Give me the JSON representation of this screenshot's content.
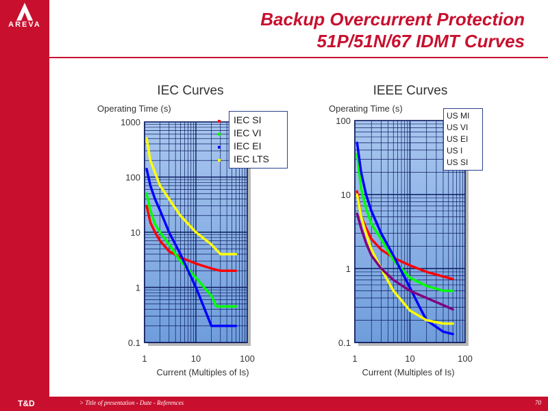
{
  "header": {
    "logo_text": "AREVA",
    "title_line1": "Backup Overcurrent Protection",
    "title_line2": "51P/51N/67 IDMT Curves"
  },
  "footer": {
    "division": "T&D",
    "text": "> Title of presentation - Date - References",
    "page": "70"
  },
  "colors": {
    "brand": "#c8102e",
    "plot_bg_top": "#a9c7ef",
    "plot_bg_bottom": "#6f9ddc",
    "grid": "#0b1a5c"
  },
  "chart_data": [
    {
      "type": "line",
      "title": "IEC Curves",
      "xlabel": "Current (Multiples of Is)",
      "ylabel": "Operating Time (s)",
      "xscale": "log",
      "yscale": "log",
      "xlim": [
        1,
        100
      ],
      "ylim": [
        0.1,
        1000
      ],
      "xticks": [
        "1",
        "10",
        "100"
      ],
      "yticks": [
        "0.1",
        "1",
        "10",
        "100",
        "1000"
      ],
      "grid": true,
      "legend_position": "top-right",
      "series": [
        {
          "name": "IEC SI",
          "color": "#ff0000",
          "x": [
            1.1,
            1.3,
            1.6,
            2,
            3,
            5,
            10,
            20,
            30,
            60
          ],
          "y": [
            30,
            15,
            10,
            7,
            4.5,
            3.5,
            2.7,
            2.2,
            2,
            2
          ]
        },
        {
          "name": "IEC VI",
          "color": "#00ff00",
          "x": [
            1.1,
            1.3,
            1.6,
            2,
            3,
            5,
            10,
            20,
            25,
            60
          ],
          "y": [
            50,
            25,
            14,
            10,
            6,
            3,
            1.5,
            0.7,
            0.45,
            0.45
          ]
        },
        {
          "name": "IEC EI",
          "color": "#0000ff",
          "x": [
            1.1,
            1.3,
            1.6,
            2,
            3,
            5,
            10,
            20,
            60
          ],
          "y": [
            140,
            70,
            40,
            25,
            10,
            4,
            1,
            0.2,
            0.2
          ]
        },
        {
          "name": "IEC LTS",
          "color": "#ffff00",
          "x": [
            1.1,
            1.3,
            1.6,
            2,
            3,
            5,
            10,
            20,
            30,
            60
          ],
          "y": [
            500,
            200,
            120,
            70,
            40,
            20,
            10,
            6,
            4,
            4
          ]
        }
      ]
    },
    {
      "type": "line",
      "title": "IEEE Curves",
      "xlabel": "Current (Multiples of Is)",
      "ylabel": "Operating Time (s)",
      "xscale": "log",
      "yscale": "log",
      "xlim": [
        1,
        100
      ],
      "ylim": [
        0.1,
        100
      ],
      "xticks": [
        "1",
        "10",
        "100"
      ],
      "yticks": [
        "0.1",
        "1",
        "10",
        "100"
      ],
      "grid": true,
      "legend_position": "top-right",
      "series": [
        {
          "name": "US MI",
          "color": "#ff0000",
          "x": [
            1.1,
            1.3,
            1.6,
            2,
            3,
            5,
            10,
            20,
            40,
            60
          ],
          "y": [
            11,
            5,
            3.5,
            2.5,
            1.8,
            1.4,
            1.1,
            0.9,
            0.78,
            0.72
          ]
        },
        {
          "name": "US VI",
          "color": "#00ff00",
          "x": [
            1.1,
            1.3,
            1.6,
            2,
            3,
            5,
            10,
            20,
            40,
            60
          ],
          "y": [
            35,
            12,
            6.5,
            4,
            2.5,
            1.3,
            0.75,
            0.58,
            0.5,
            0.5
          ]
        },
        {
          "name": "US EI",
          "color": "#0000ff",
          "x": [
            1.1,
            1.3,
            1.6,
            2,
            3,
            5,
            10,
            15,
            20,
            40,
            60
          ],
          "y": [
            50,
            20,
            10,
            6,
            3,
            1.5,
            0.55,
            0.3,
            0.2,
            0.14,
            0.13
          ]
        },
        {
          "name": "US I",
          "color": "#ffff00",
          "x": [
            1.1,
            1.3,
            1.6,
            2,
            3,
            5,
            10,
            20,
            40,
            60
          ],
          "y": [
            10,
            5,
            3,
            1.8,
            1,
            0.5,
            0.27,
            0.2,
            0.18,
            0.18
          ]
        },
        {
          "name": "US SI",
          "color": "#800080",
          "x": [
            1.1,
            1.3,
            1.6,
            2,
            3,
            5,
            10,
            20,
            40,
            60
          ],
          "y": [
            5.5,
            3.5,
            2.2,
            1.5,
            1.0,
            0.7,
            0.5,
            0.4,
            0.32,
            0.28
          ]
        }
      ]
    }
  ]
}
